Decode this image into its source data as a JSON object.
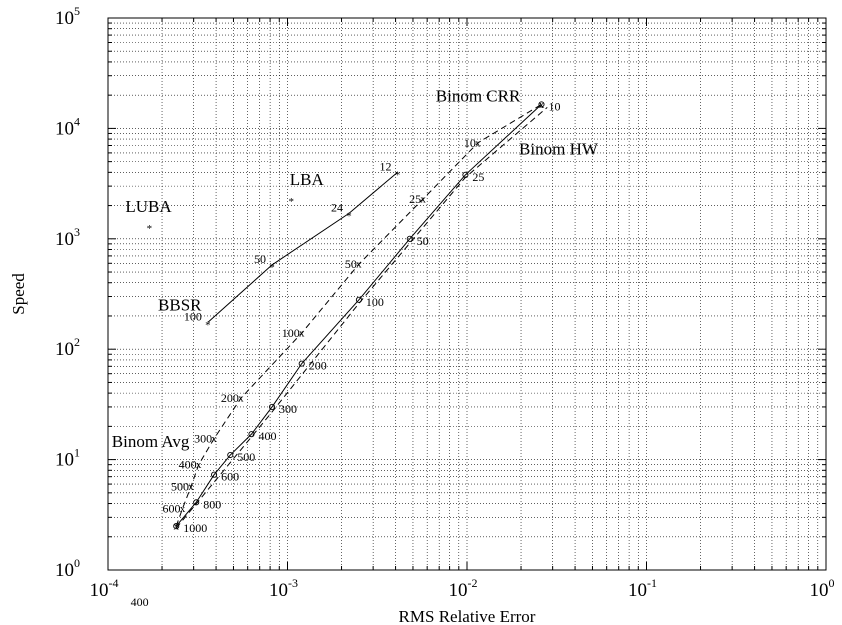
{
  "chart_data": {
    "type": "line",
    "xlabel": "RMS Relative Error",
    "ylabel": "Speed",
    "x_scale": "log",
    "y_scale": "log",
    "xlim": [
      0.0001,
      1
    ],
    "ylim": [
      1,
      100000
    ],
    "grid": true,
    "x_ticks": [
      {
        "value": 0.0001,
        "base": "10",
        "exp": "-4"
      },
      {
        "value": 0.001,
        "base": "10",
        "exp": "-3"
      },
      {
        "value": 0.01,
        "base": "10",
        "exp": "-2"
      },
      {
        "value": 0.1,
        "base": "10",
        "exp": "-1"
      },
      {
        "value": 1,
        "base": "10",
        "exp": "0"
      }
    ],
    "y_ticks": [
      {
        "value": 1,
        "base": "10",
        "exp": "0"
      },
      {
        "value": 10,
        "base": "10",
        "exp": "1"
      },
      {
        "value": 100,
        "base": "10",
        "exp": "2"
      },
      {
        "value": 1000,
        "base": "10",
        "exp": "3"
      },
      {
        "value": 10000,
        "base": "10",
        "exp": "4"
      },
      {
        "value": 100000,
        "base": "10",
        "exp": "5"
      }
    ],
    "stray_label": "400",
    "series": [
      {
        "name": "BBSR",
        "style": "solid",
        "marker": "*",
        "points": [
          {
            "x": 0.00036,
            "y": 175,
            "label": "100"
          },
          {
            "x": 0.00082,
            "y": 580,
            "label": "50"
          },
          {
            "x": 0.0022,
            "y": 1700,
            "label": "24"
          },
          {
            "x": 0.0041,
            "y": 4000,
            "label": "12"
          }
        ]
      },
      {
        "name": "Binom Avg",
        "style": "dashed",
        "marker": "x",
        "points": [
          {
            "x": 0.00024,
            "y": 2.5,
            "label": ""
          },
          {
            "x": 0.00026,
            "y": 3.6,
            "label": "600"
          },
          {
            "x": 0.00029,
            "y": 5.7,
            "label": "500"
          },
          {
            "x": 0.00032,
            "y": 9.0,
            "label": "400"
          },
          {
            "x": 0.00039,
            "y": 15.5,
            "label": "300"
          },
          {
            "x": 0.00055,
            "y": 36,
            "label": "200"
          },
          {
            "x": 0.0012,
            "y": 140,
            "label": "100"
          },
          {
            "x": 0.0025,
            "y": 590,
            "label": "50"
          },
          {
            "x": 0.0057,
            "y": 2300,
            "label": "25"
          },
          {
            "x": 0.0115,
            "y": 7400,
            "label": "10"
          },
          {
            "x": 0.026,
            "y": 16500,
            "label": ""
          }
        ]
      },
      {
        "name": "Binom CRR",
        "style": "solid",
        "marker": "o",
        "points": [
          {
            "x": 0.00024,
            "y": 2.5,
            "label": "1000"
          },
          {
            "x": 0.00031,
            "y": 4.1,
            "label": "800"
          },
          {
            "x": 0.00039,
            "y": 7.3,
            "label": "600"
          },
          {
            "x": 0.00048,
            "y": 11,
            "label": "500"
          },
          {
            "x": 0.00063,
            "y": 17,
            "label": "400"
          },
          {
            "x": 0.00082,
            "y": 30,
            "label": "300"
          },
          {
            "x": 0.0012,
            "y": 74,
            "label": "200"
          },
          {
            "x": 0.0025,
            "y": 280,
            "label": "100"
          },
          {
            "x": 0.0048,
            "y": 1000,
            "label": "50"
          },
          {
            "x": 0.0098,
            "y": 3800,
            "label": "25"
          },
          {
            "x": 0.026,
            "y": 16500,
            "label": "10"
          }
        ]
      },
      {
        "name": "Binom HW",
        "style": "dashed",
        "marker": "",
        "points": [
          {
            "x": 0.00024,
            "y": 2.4
          },
          {
            "x": 0.00082,
            "y": 27
          },
          {
            "x": 0.0025,
            "y": 260
          },
          {
            "x": 0.0098,
            "y": 3600
          },
          {
            "x": 0.028,
            "y": 15500
          }
        ]
      },
      {
        "name": "LBA",
        "style": "none",
        "marker": "*",
        "points": [
          {
            "x": 0.00105,
            "y": 2300
          }
        ]
      },
      {
        "name": "LUBA",
        "style": "none",
        "marker": "*",
        "points": [
          {
            "x": 0.00017,
            "y": 1300
          }
        ]
      }
    ]
  }
}
